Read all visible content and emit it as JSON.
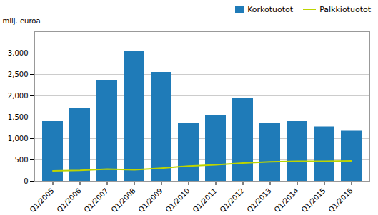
{
  "chart_data": {
    "type": "bar",
    "ylabel": "milj. euroa",
    "categories": [
      "Q1/2005",
      "Q1/2006",
      "Q1/2007",
      "Q1/2008",
      "Q1/2009",
      "Q1/2010",
      "Q1/2011",
      "Q1/2012",
      "Q1/2013",
      "Q1/2014",
      "Q1/2015",
      "Q1/2016"
    ],
    "series": [
      {
        "name": "Korkotuotot",
        "type": "bar",
        "color": "#1f7bb8",
        "values": [
          1400,
          1700,
          2350,
          3050,
          2550,
          1350,
          1550,
          1950,
          1350,
          1400,
          1275,
          1175
        ]
      },
      {
        "name": "Palkkiotuotot",
        "type": "line",
        "color": "#bdd400",
        "values": [
          240,
          255,
          285,
          265,
          305,
          355,
          385,
          425,
          455,
          465,
          465,
          475
        ]
      }
    ],
    "ylim": [
      0,
      3500
    ],
    "yticks": [
      0,
      500,
      1000,
      1500,
      2000,
      2500,
      3000
    ],
    "grid": true,
    "legend": "upper right"
  }
}
